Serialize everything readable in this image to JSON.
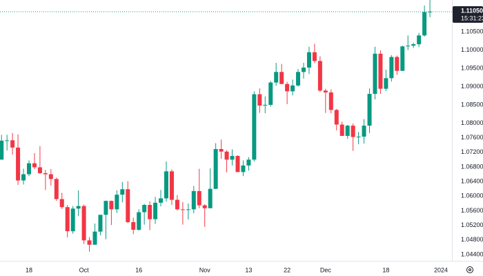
{
  "chart_data": {
    "type": "candlestick",
    "categories": [
      null,
      null,
      null,
      null,
      null,
      "18",
      null,
      null,
      null,
      null,
      null,
      null,
      null,
      null,
      null,
      "Oct",
      null,
      null,
      null,
      null,
      null,
      null,
      null,
      null,
      null,
      "16",
      null,
      null,
      null,
      null,
      null,
      null,
      null,
      null,
      null,
      null,
      null,
      "Nov",
      null,
      null,
      null,
      null,
      null,
      null,
      null,
      "13",
      null,
      null,
      null,
      null,
      null,
      null,
      "22",
      null,
      null,
      null,
      null,
      null,
      null,
      "Dec",
      null,
      null,
      null,
      null,
      null,
      null,
      null,
      null,
      null,
      null,
      "18",
      null,
      null,
      null,
      null,
      null,
      null,
      null,
      null,
      null,
      "2024"
    ],
    "open": [
      1.07,
      1.0752,
      1.0753,
      1.0733,
      1.0643,
      1.066,
      1.069,
      1.0679,
      1.0663,
      1.066,
      1.0647,
      1.0592,
      1.057,
      1.0504,
      1.0566,
      1.0573,
      1.0479,
      1.0467,
      1.0503,
      1.0549,
      1.0587,
      1.0564,
      1.0604,
      1.0619,
      1.0529,
      1.0508,
      1.0556,
      1.0576,
      1.0537,
      1.0582,
      1.0594,
      1.0668,
      1.059,
      1.0564,
      1.0563,
      1.0564,
      1.0614,
      1.0575,
      1.0567,
      1.062,
      1.0729,
      1.0722,
      1.07,
      1.071,
      1.0666,
      1.0684,
      1.07,
      1.0879,
      1.0848,
      1.085,
      1.0911,
      1.094,
      1.0907,
      1.0887,
      1.0903,
      1.094,
      1.0952,
      1.0994,
      1.097,
      1.0889,
      1.0884,
      1.0836,
      1.0796,
      1.0765,
      1.0793,
      1.0762,
      1.0763,
      1.0793,
      1.088,
      1.099,
      1.0894,
      1.0923,
      1.0981,
      1.0943,
      1.101,
      1.1012,
      1.1016,
      1.104,
      1.1104,
      null,
      null
    ],
    "high": [
      1.0768,
      1.0768,
      1.0773,
      1.0769,
      1.0675,
      1.0698,
      1.0718,
      1.0737,
      1.0672,
      1.0674,
      1.0651,
      1.0609,
      1.0576,
      1.0573,
      1.0616,
      1.0577,
      1.0488,
      1.0525,
      1.0545,
      1.0588,
      1.0588,
      1.0616,
      1.0639,
      1.0641,
      1.0541,
      1.0564,
      1.0579,
      1.0586,
      1.0598,
      1.0617,
      1.0695,
      1.0673,
      1.0603,
      1.0584,
      1.058,
      1.0628,
      1.0675,
      1.0578,
      1.0676,
      1.0745,
      1.0755,
      1.0726,
      1.0728,
      1.0712,
      1.0698,
      1.0707,
      1.0887,
      1.0895,
      1.0873,
      1.0915,
      1.0965,
      1.0962,
      1.0913,
      1.0919,
      1.0948,
      1.0965,
      1.1009,
      1.1017,
      1.0983,
      1.0894,
      1.0892,
      1.0839,
      1.0804,
      1.0795,
      1.0799,
      1.0776,
      1.0811,
      1.0895,
      1.1009,
      1.0999,
      1.0946,
      1.0986,
      1.0985,
      1.1012,
      1.104,
      1.102,
      1.1047,
      1.1122,
      1.1139,
      null,
      null
    ],
    "low": [
      1.07,
      1.0725,
      1.0714,
      1.0631,
      1.0632,
      1.0655,
      1.0674,
      1.0661,
      1.0617,
      1.0629,
      1.0587,
      1.0565,
      1.0487,
      1.0497,
      1.0545,
      1.0469,
      1.0448,
      1.0467,
      1.0493,
      1.0482,
      1.0521,
      1.0554,
      1.0583,
      1.0526,
      1.0496,
      1.0505,
      1.0522,
      1.0507,
      1.0524,
      1.0572,
      1.0585,
      1.0576,
      1.0561,
      1.0522,
      1.0536,
      1.0553,
      1.0567,
      1.0516,
      1.0567,
      1.0619,
      1.0702,
      1.0665,
      1.0684,
      1.0666,
      1.0655,
      1.067,
      1.0695,
      1.0828,
      1.0827,
      1.0845,
      1.0902,
      1.0913,
      1.0852,
      1.0876,
      1.09,
      1.0922,
      1.0934,
      1.0964,
      1.0885,
      1.0828,
      1.0827,
      1.078,
      1.0765,
      1.0757,
      1.0724,
      1.0742,
      1.0744,
      1.0773,
      1.0865,
      1.088,
      1.0888,
      1.0914,
      1.0932,
      1.0943,
      1.1,
      1.1006,
      1.1008,
      1.1037,
      1.109,
      null,
      null
    ],
    "close": [
      1.0752,
      1.0753,
      1.0733,
      1.0643,
      1.066,
      1.069,
      1.0679,
      1.0663,
      1.066,
      1.0647,
      1.0592,
      1.057,
      1.0504,
      1.0566,
      1.0573,
      1.0479,
      1.0467,
      1.0503,
      1.0549,
      1.0587,
      1.0564,
      1.0604,
      1.0619,
      1.0529,
      1.0508,
      1.0556,
      1.0576,
      1.0537,
      1.0582,
      1.0594,
      1.0668,
      1.059,
      1.0564,
      1.0563,
      1.0564,
      1.0614,
      1.0575,
      1.0567,
      1.062,
      1.0729,
      1.0722,
      1.07,
      1.071,
      1.0666,
      1.0684,
      1.07,
      1.0879,
      1.0848,
      1.085,
      1.0911,
      1.094,
      1.0907,
      1.0887,
      1.0903,
      1.094,
      1.0952,
      1.0994,
      1.097,
      1.0889,
      1.0884,
      1.0836,
      1.0796,
      1.0765,
      1.0793,
      1.0762,
      1.0763,
      1.0793,
      1.088,
      1.099,
      1.0894,
      1.0923,
      1.0981,
      1.0943,
      1.101,
      1.1012,
      1.1016,
      1.104,
      1.1104,
      1.1105,
      null,
      null
    ],
    "up_color": "#089981",
    "down_color": "#f23645",
    "ylim": [
      1.0423,
      1.1137
    ],
    "yticks": [
      {
        "value": 1.105,
        "label": "1.10500"
      },
      {
        "value": 1.1,
        "label": "1.10000"
      },
      {
        "value": 1.095,
        "label": "1.09500"
      },
      {
        "value": 1.09,
        "label": "1.09000"
      },
      {
        "value": 1.085,
        "label": "1.08500"
      },
      {
        "value": 1.08,
        "label": "1.08000"
      },
      {
        "value": 1.076,
        "label": "1.07600"
      },
      {
        "value": 1.072,
        "label": "1.07200"
      },
      {
        "value": 1.068,
        "label": "1.06800"
      },
      {
        "value": 1.064,
        "label": "1.06400"
      },
      {
        "value": 1.06,
        "label": "1.06000"
      },
      {
        "value": 1.056,
        "label": "1.05600"
      },
      {
        "value": 1.052,
        "label": "1.05200"
      },
      {
        "value": 1.048,
        "label": "1.04800"
      },
      {
        "value": 1.044,
        "label": "1.04400"
      }
    ],
    "last_price": {
      "value": 1.1105,
      "label": "1.11050"
    },
    "countdown": "15:31:23",
    "grid": false
  }
}
